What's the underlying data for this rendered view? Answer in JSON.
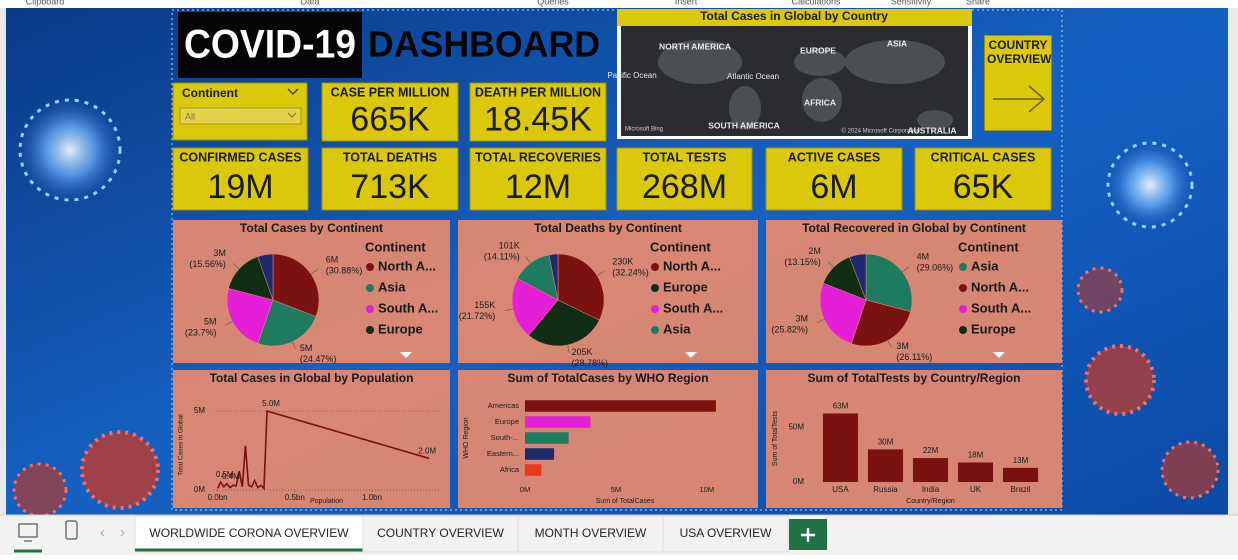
{
  "ribbon": [
    "Clipboard",
    "Data",
    "Queries",
    "Insert",
    "Calculations",
    "Sensitivity",
    "Share"
  ],
  "header": {
    "title_main": "COVID-19",
    "title_rest": "DASHBOARD"
  },
  "filter": {
    "label": "Continent",
    "value": "All"
  },
  "kpis": [
    {
      "label": "CASE PER MILLION",
      "value": "665K"
    },
    {
      "label": "DEATH PER MILLION",
      "value": "18.45K"
    },
    {
      "label": "CONFIRMED CASES",
      "value": "19M"
    },
    {
      "label": "TOTAL DEATHS",
      "value": "713K"
    },
    {
      "label": "TOTAL RECOVERIES",
      "value": "12M"
    },
    {
      "label": "TOTAL TESTS",
      "value": "268M"
    },
    {
      "label": "ACTIVE CASES",
      "value": "6M"
    },
    {
      "label": "CRITICAL CASES",
      "value": "65K"
    }
  ],
  "map": {
    "title": "Total Cases in Global by Country",
    "labels": [
      "NORTH AMERICA",
      "EUROPE",
      "ASIA",
      "Pacific Ocean",
      "Atlantic Ocean",
      "AFRICA",
      "SOUTH AMERICA",
      "AUSTRALIA"
    ],
    "attribution": "Microsoft Bing",
    "copyright": "© 2024 Microsoft Corporation"
  },
  "nav_button": {
    "label": "COUNTRY OVERVIEW"
  },
  "chart_data": [
    {
      "type": "pie",
      "title": "Total Cases by Continent",
      "legend_title": "Continent",
      "categories": [
        "North A...",
        "Asia",
        "South A...",
        "Europe",
        null
      ],
      "values": [
        30.88,
        24.47,
        23.7,
        15.56,
        5.39
      ],
      "value_labels": [
        "(30.88%)",
        "(24.47%)",
        "(23.7%)",
        "(15.56%)",
        null
      ],
      "amounts": [
        "6M",
        "5M",
        "5M",
        "3M",
        null
      ],
      "colors": [
        "#7a1212",
        "#1e7b5f",
        "#e51fd8",
        "#0f2e14",
        "#1c2b6e"
      ]
    },
    {
      "type": "pie",
      "title": "Total Deaths by Continent",
      "legend_title": "Continent",
      "categories": [
        "North A...",
        "Europe",
        "South A...",
        "Asia",
        null
      ],
      "values": [
        32.24,
        28.78,
        21.72,
        14.11,
        3.15
      ],
      "value_labels": [
        "(32.24%)",
        "(28.78%)",
        "(21.72%)",
        "(14.11%)",
        null
      ],
      "amounts": [
        "230K",
        "205K",
        "155K",
        "101K",
        null
      ],
      "colors": [
        "#7a1212",
        "#0f2e14",
        "#e51fd8",
        "#1e7b5f",
        "#1c2b6e"
      ]
    },
    {
      "type": "pie",
      "title": "Total Recovered in Global by Continent",
      "legend_title": "Continent",
      "categories": [
        "Asia",
        "North A...",
        "South A...",
        "Europe",
        null
      ],
      "values": [
        29.06,
        26.11,
        25.82,
        13.15,
        5.86
      ],
      "value_labels": [
        "(29.06%)",
        "(26.11%)",
        "(25.82%)",
        "(13.15%)",
        null
      ],
      "amounts": [
        "4M",
        "3M",
        "3M",
        "2M",
        null
      ],
      "colors": [
        "#1e7b5f",
        "#7a1212",
        "#e51fd8",
        "#0f2e14",
        "#1c2b6e"
      ]
    },
    {
      "type": "line",
      "title": "Total Cases in Global by Population",
      "x_label": "Population",
      "y_label": "Total Cases in Global",
      "x": [
        0.0,
        0.02,
        0.04,
        0.06,
        0.08,
        0.1,
        0.12,
        0.14,
        0.16,
        0.18,
        0.2,
        0.22,
        0.24,
        0.26,
        0.28,
        0.3,
        0.32,
        1.37
      ],
      "values": [
        100000,
        500000,
        200000,
        400000,
        150000,
        300000,
        250000,
        1200000,
        200000,
        2800000,
        300000,
        200000,
        600000,
        150000,
        300000,
        100000,
        5000000,
        2000000
      ],
      "value_labels": [
        null,
        "0.5M",
        null,
        "0.4M",
        null,
        null,
        null,
        null,
        null,
        null,
        null,
        null,
        null,
        null,
        null,
        null,
        "5.0M",
        "2.0M"
      ],
      "color": "#7a1212",
      "xlim": [
        -0.03,
        1.44
      ],
      "xticks": [
        {
          "value": 0,
          "label": "0.0bn"
        },
        {
          "value": 0.5,
          "label": "0.5bn"
        },
        {
          "value": 1.0,
          "label": "1.0bn"
        }
      ],
      "ylim": [
        0,
        5700000
      ],
      "yticks": [
        {
          "value": 0,
          "label": "0M"
        },
        {
          "value": 5000000,
          "label": "5M"
        }
      ],
      "grid": true
    },
    {
      "type": "bar",
      "orientation": "horizontal",
      "title": "Sum of TotalCases by WHO Region",
      "x_label": "Sum of TotalCases",
      "y_label": "WHO Region",
      "categories": [
        "Americas",
        "Europe",
        "South-...",
        "Eastern...",
        "Africa"
      ],
      "values": [
        10500000,
        3600000,
        2400000,
        1600000,
        900000
      ],
      "colors": [
        "#7a1212",
        "#e51fd8",
        "#1e7b5f",
        "#1c2b6e",
        "#e8391a"
      ],
      "xlim": [
        0,
        11000000
      ],
      "xticks": [
        {
          "value": 0,
          "label": "0M"
        },
        {
          "value": 5000000,
          "label": "5M"
        },
        {
          "value": 10000000,
          "label": "10M"
        }
      ],
      "grid": true
    },
    {
      "type": "bar",
      "orientation": "vertical",
      "title": "Sum of TotalTests by Country/Region",
      "x_label": "Country/Region",
      "y_label": "Sum of TotalTests",
      "categories": [
        "USA",
        "Russia",
        "India",
        "UK",
        "Brazil"
      ],
      "values": [
        63000000,
        30000000,
        22000000,
        18000000,
        13000000
      ],
      "value_labels": [
        "63M",
        "30M",
        "22M",
        "18M",
        "13M"
      ],
      "color": "#7a1212",
      "ylim": [
        0,
        80000000
      ],
      "yticks": [
        {
          "value": 0,
          "label": "0M"
        },
        {
          "value": 50000000,
          "label": "50M"
        }
      ],
      "grid": true
    }
  ],
  "tabs": [
    "WORLDWIDE CORONA OVERVIEW",
    "COUNTRY OVERVIEW",
    "MONTH OVERVIEW",
    "USA OVERVIEW"
  ],
  "active_tab": 0
}
